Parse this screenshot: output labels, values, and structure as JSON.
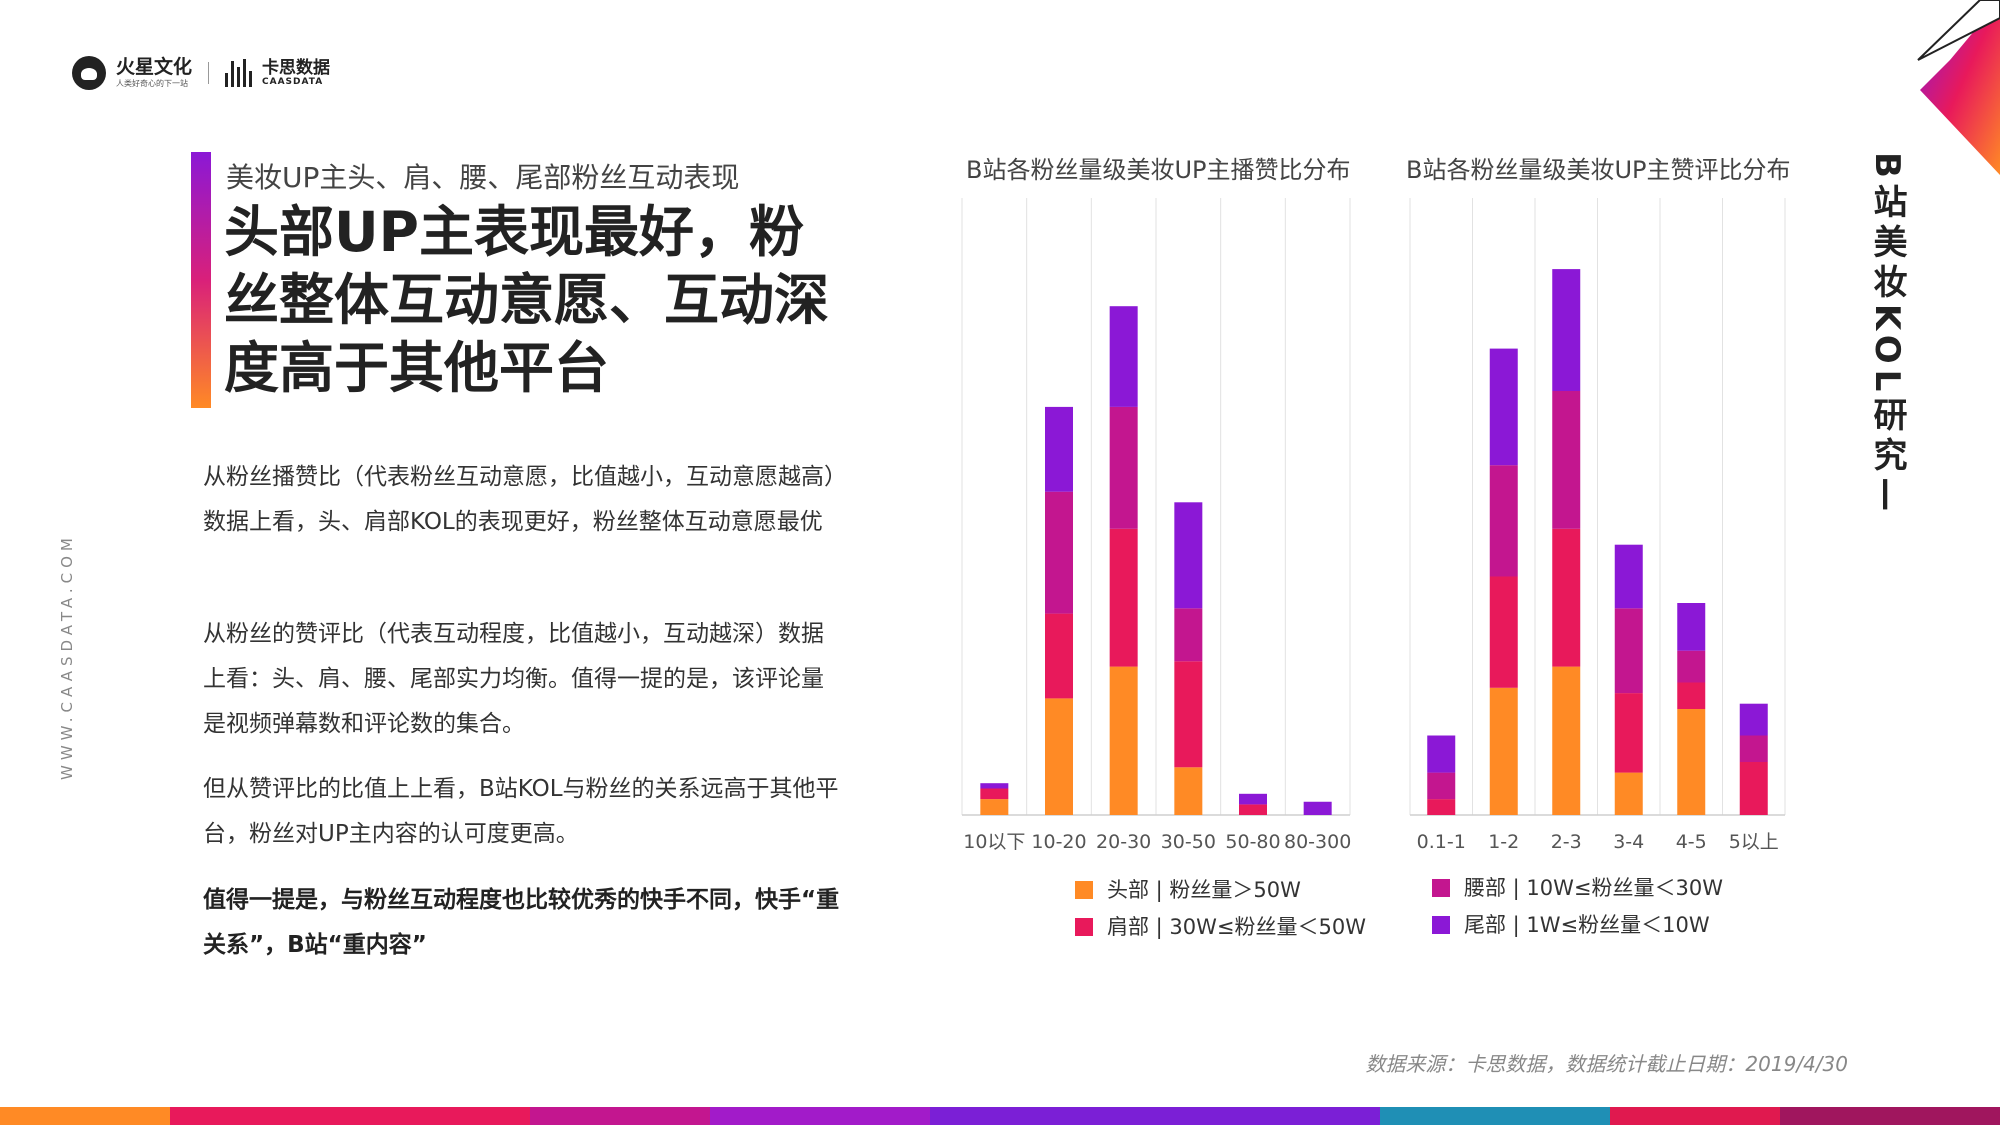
{
  "brand": {
    "name_a": "火星文化",
    "slogan": "人类好奇心的下一站",
    "name_b": "卡思数据",
    "name_b_en": "CAASDATA"
  },
  "header": {
    "subtitle": "美妆UP主头、肩、腰、尾部粉丝互动表现",
    "headline": "头部UP主表现最好，粉丝整体互动意愿、互动深度高于其他平台"
  },
  "paragraphs": [
    "从粉丝播赞比（代表粉丝互动意愿，比值越小，互动意愿越高）数据上看，头、肩部KOL的表现更好，粉丝整体互动意愿最优",
    "从粉丝的赞评比（代表互动程度，比值越小，互动越深）数据上看：头、肩、腰、尾部实力均衡。值得一提的是，该评论量是视频弹幕数和评论数的集合。",
    "但从赞评比的比值上上看，B站KOL与粉丝的关系远高于其他平台，粉丝对UP主内容的认可度更高。"
  ],
  "highlight": "值得一提是，与粉丝互动程度也比较优秀的快手不同，快手“重关系”，B站“重内容”",
  "side": {
    "url": "WWW.CAASDATA.COM",
    "title": "B站美妆KOL研究—"
  },
  "colors": {
    "orange": "#ff8a25",
    "red": "#e8195b",
    "magenta": "#c3168f",
    "purple": "#8b18d6"
  },
  "chart_data": [
    {
      "type": "bar",
      "stacked": true,
      "title": "B站各粉丝量级美妆UP主播赞比分布",
      "categories": [
        "10以下",
        "10-20",
        "20-30",
        "30-50",
        "50-80",
        "80-300"
      ],
      "ylim": [
        0,
        100
      ],
      "grid": "vertical",
      "series": [
        {
          "name": "头部",
          "color": "orange",
          "values": [
            3,
            22,
            28,
            9,
            0,
            0
          ]
        },
        {
          "name": "肩部",
          "color": "red",
          "values": [
            2,
            16,
            26,
            20,
            2,
            0
          ]
        },
        {
          "name": "腰部",
          "color": "magenta",
          "values": [
            0,
            23,
            23,
            10,
            0,
            0
          ]
        },
        {
          "name": "尾部",
          "color": "purple",
          "values": [
            1,
            16,
            19,
            20,
            2,
            2.5
          ]
        }
      ]
    },
    {
      "type": "bar",
      "stacked": true,
      "title": "B站各粉丝量级美妆UP主赞评比分布",
      "categories": [
        "0.1-1",
        "1-2",
        "2-3",
        "3-4",
        "4-5",
        "5以上"
      ],
      "ylim": [
        0,
        100
      ],
      "grid": "vertical",
      "series": [
        {
          "name": "头部",
          "color": "orange",
          "values": [
            0,
            24,
            28,
            8,
            20,
            0
          ]
        },
        {
          "name": "肩部",
          "color": "red",
          "values": [
            3,
            21,
            26,
            15,
            5,
            10
          ]
        },
        {
          "name": "腰部",
          "color": "magenta",
          "values": [
            5,
            21,
            26,
            16,
            6,
            5
          ]
        },
        {
          "name": "尾部",
          "color": "purple",
          "values": [
            7,
            22,
            23,
            12,
            9,
            6
          ]
        }
      ]
    }
  ],
  "legend": [
    {
      "name": "头部",
      "range": "粉丝量＞50W",
      "color": "orange"
    },
    {
      "name": "肩部",
      "range": "30W≤粉丝量＜50W",
      "color": "red"
    },
    {
      "name": "腰部",
      "range": "10W≤粉丝量＜30W",
      "color": "magenta"
    },
    {
      "name": "尾部",
      "range": "1W≤粉丝量＜10W",
      "color": "purple"
    }
  ],
  "source": "数据来源：卡思数据，数据统计截止日期：2019/4/30"
}
